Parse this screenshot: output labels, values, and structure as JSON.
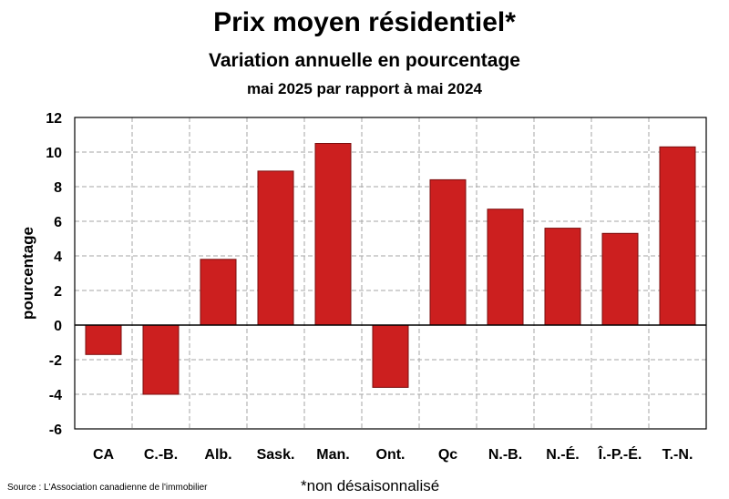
{
  "header": {
    "title": "Prix moyen résidentiel*",
    "subtitle": "Variation annuelle en pourcentage",
    "period": "mai 2025 par rapport à mai 2024"
  },
  "footer": {
    "source": "Source : L'Association canadienne de l'immobilier",
    "footnote": "*non désaisonnalisé"
  },
  "colors": {
    "bar": "#cc1f1f",
    "bar_edge": "#7a0d0d",
    "grid": "#a6a6a6"
  },
  "chart_data": {
    "type": "bar",
    "title": "Prix moyen résidentiel*",
    "xlabel": "",
    "ylabel": "pourcentage",
    "categories": [
      "CA",
      "C.-B.",
      "Alb.",
      "Sask.",
      "Man.",
      "Ont.",
      "Qc",
      "N.-B.",
      "N.-É.",
      "Î.-P.-É.",
      "T.-N."
    ],
    "values": [
      -1.7,
      -4.0,
      3.8,
      8.9,
      10.5,
      -3.6,
      8.4,
      6.7,
      5.6,
      5.3,
      10.3
    ],
    "ylim": [
      -6,
      12
    ],
    "yticks": [
      -6,
      -4,
      -2,
      0,
      2,
      4,
      6,
      8,
      10,
      12
    ],
    "grid": true
  }
}
